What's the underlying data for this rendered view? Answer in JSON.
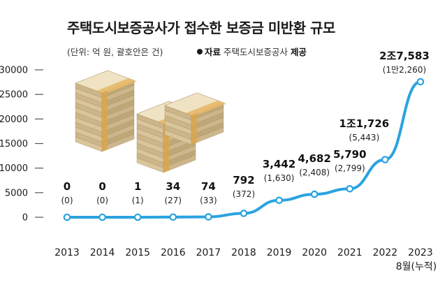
{
  "header": {
    "title": "주택도시보증공사가 접수한 보증금 미반환 규모",
    "unit_note": "(단위: 억 원, 괄호안은 건)",
    "source_label": "자료",
    "source_name": "주택도시보증공사",
    "source_suffix": "제공"
  },
  "colors": {
    "line": "#2aa3e0",
    "marker_fill": "#ffffff",
    "grid": "#555555"
  },
  "chart_data": {
    "type": "line",
    "title": "주택도시보증공사가 접수한 보증금 미반환 규모",
    "xlabel": "",
    "ylabel": "",
    "ylim": [
      0,
      30000
    ],
    "yticks": [
      "0",
      "5000",
      "10000",
      "15000",
      "20000",
      "25000",
      "30000"
    ],
    "categories": [
      "2013",
      "2014",
      "2015",
      "2016",
      "2017",
      "2018",
      "2019",
      "2020",
      "2021",
      "2022",
      "2023"
    ],
    "x_note": "8월(누적)",
    "values": [
      0,
      0,
      1,
      34,
      74,
      792,
      3442,
      4682,
      5790,
      11726,
      27583
    ],
    "counts": [
      0,
      0,
      1,
      27,
      33,
      372,
      1630,
      2408,
      2799,
      5443,
      12260
    ],
    "value_labels": [
      "0",
      "0",
      "1",
      "34",
      "74",
      "792",
      "3,442",
      "4,682",
      "5,790",
      "1조1,726",
      "2조7,583"
    ],
    "count_labels": [
      "(0)",
      "(0)",
      "(1)",
      "(27)",
      "(33)",
      "(372)",
      "(1,630)",
      "(2,408)",
      "(2,799)",
      "(5,443)",
      "(1만2,260)"
    ],
    "grid": false,
    "legend": "none"
  }
}
